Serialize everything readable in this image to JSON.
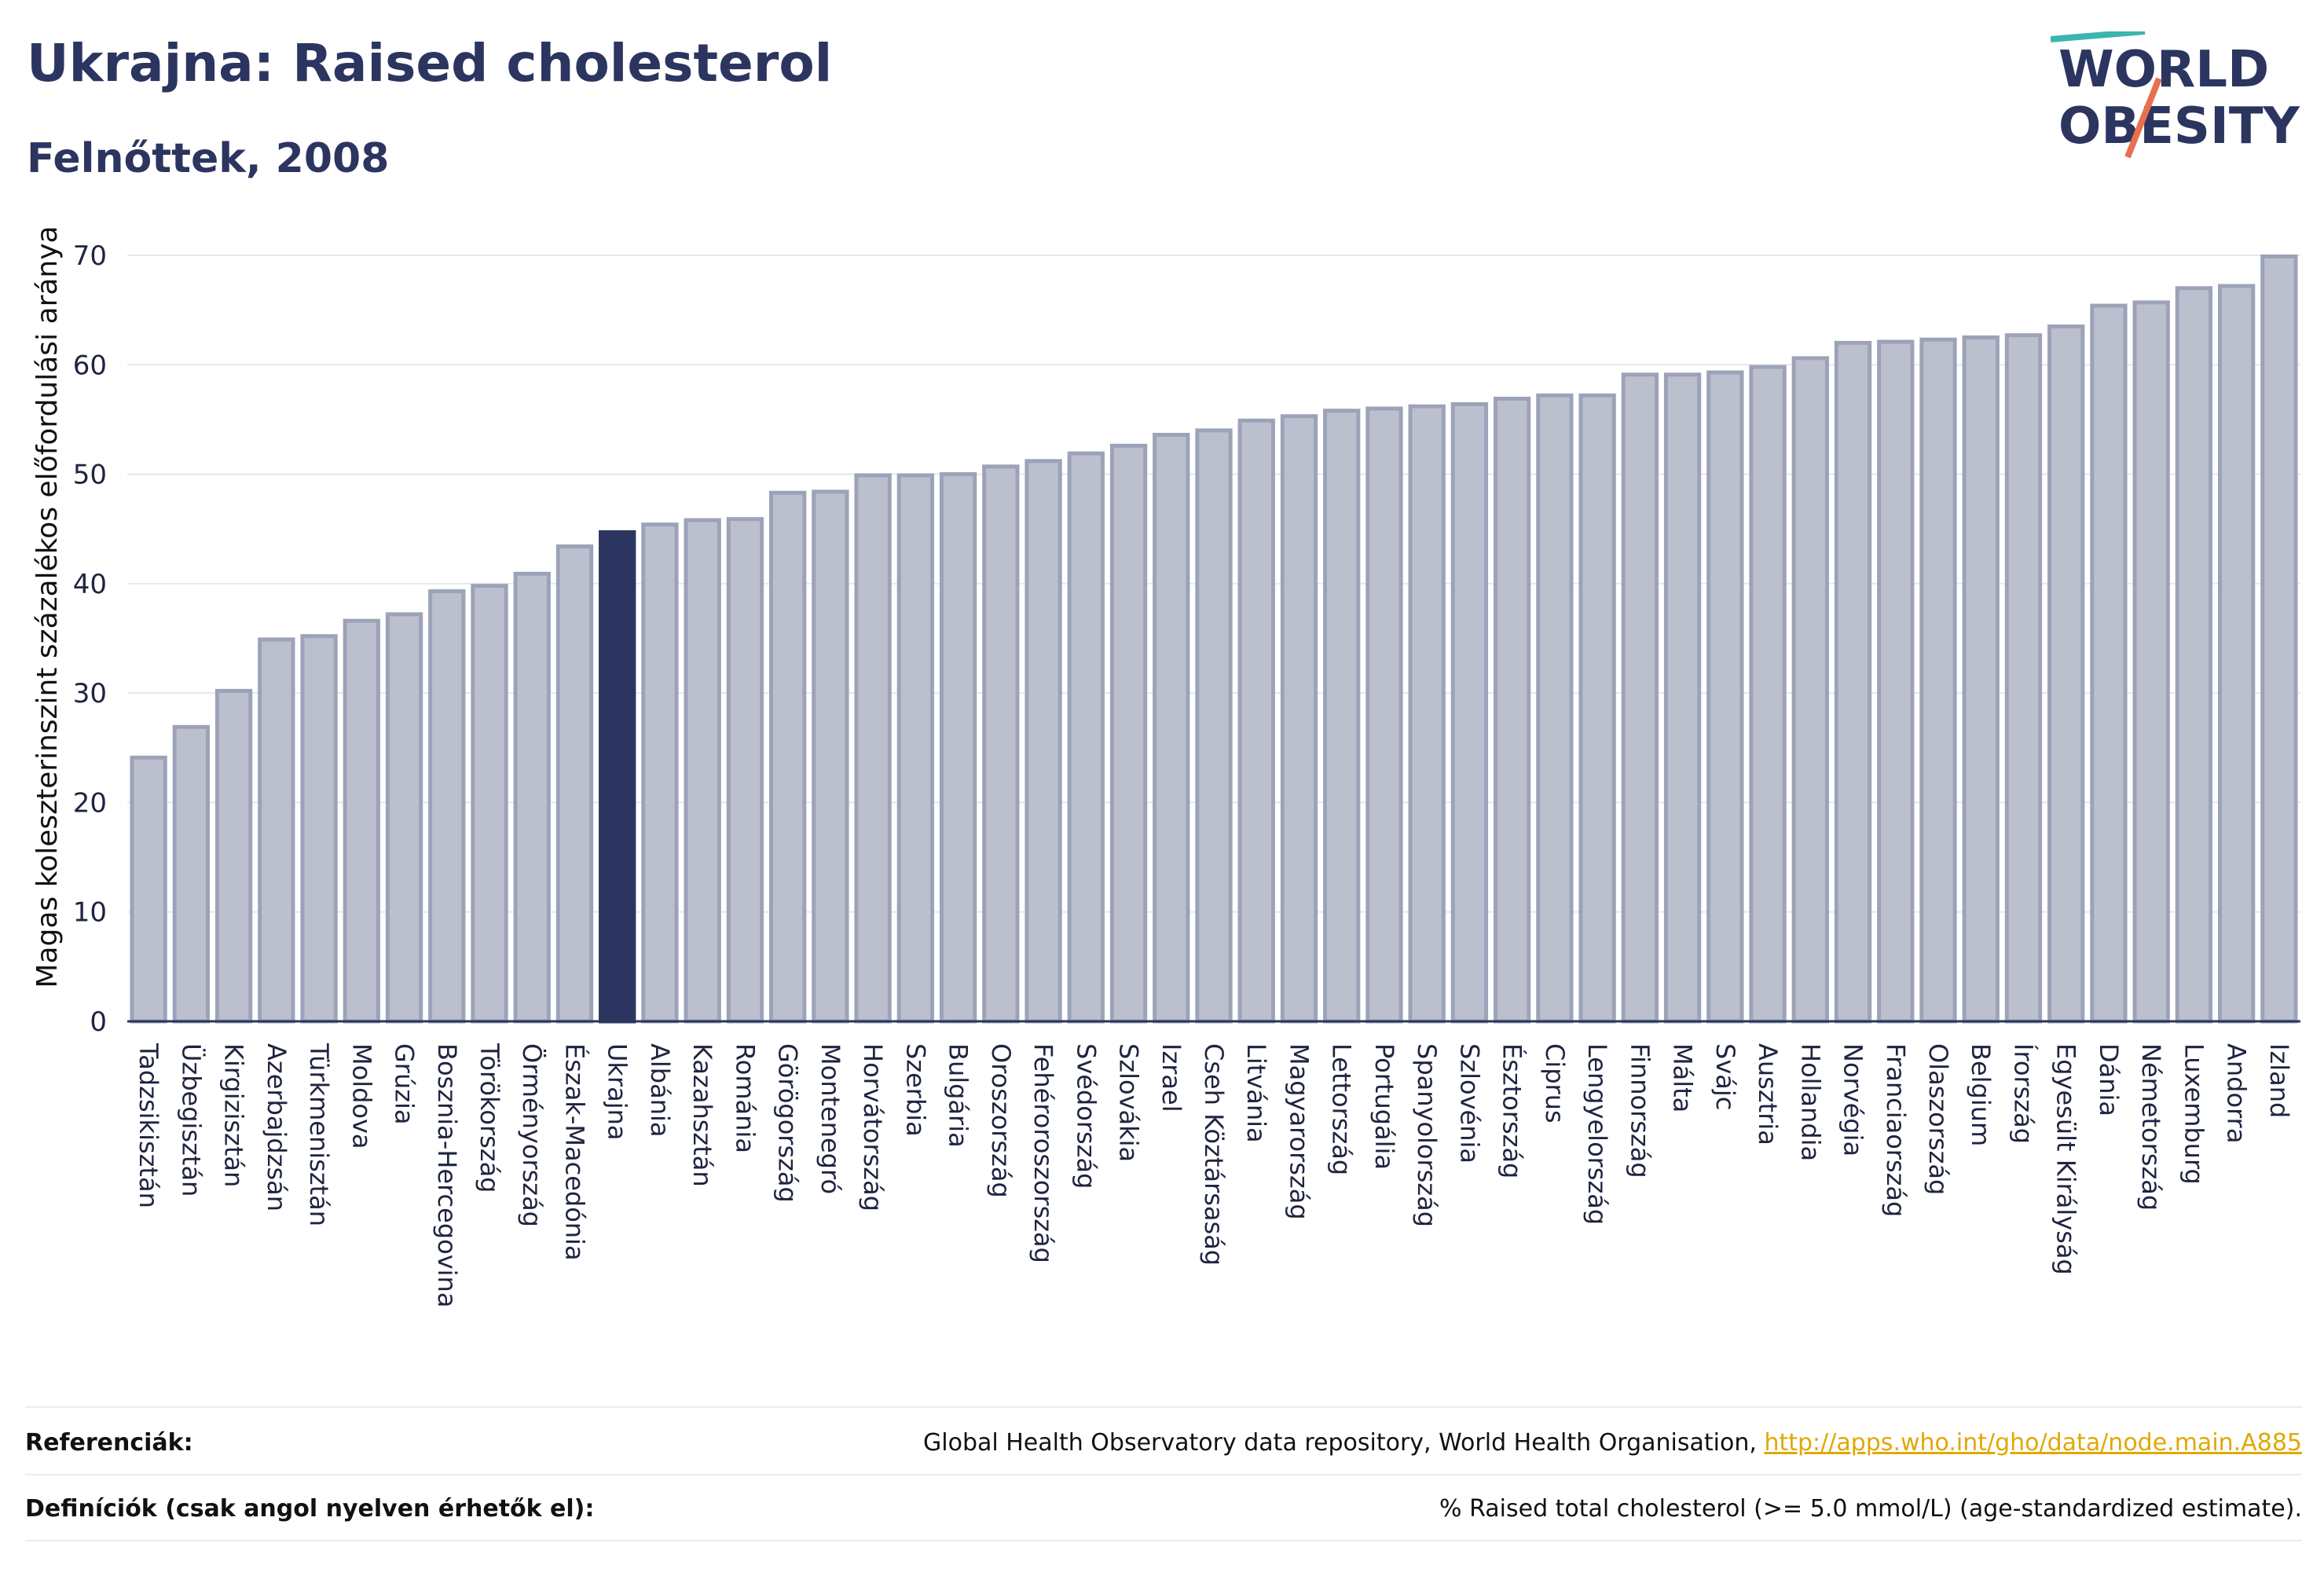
{
  "header": {
    "title": "Ukrajna: Raised cholesterol",
    "subtitle": "Felnőttek, 2008"
  },
  "logo": {
    "line1": "WORLD",
    "line2": "OBESITY"
  },
  "chart_data": {
    "type": "bar",
    "ylabel": "Magas koleszterinszint százalékos előfordulási aránya",
    "ylim": [
      0,
      70
    ],
    "yticks": [
      0,
      10,
      20,
      30,
      40,
      50,
      60,
      70
    ],
    "grid": true,
    "highlight": "Ukrajna",
    "colors": {
      "bar": "#bcc0ce",
      "bar_border": "#9ca3b8",
      "highlight": "#2b355f",
      "axis": "#2b355f",
      "grid": "#e6e8ee"
    },
    "categories": [
      "Tadzsikisztán",
      "Üzbegisztán",
      "Kirgizisztán",
      "Azerbajdzsán",
      "Türkmenisztán",
      "Moldova",
      "Grúzia",
      "Bosznia-Hercegovina",
      "Törökország",
      "Örményország",
      "Észak-Macedónia",
      "Ukrajna",
      "Albánia",
      "Kazahsztán",
      "Románia",
      "Görögország",
      "Montenegró",
      "Horvátország",
      "Szerbia",
      "Bulgária",
      "Oroszország",
      "Fehéroroszország",
      "Svédország",
      "Szlovákia",
      "Izrael",
      "Cseh Köztársaság",
      "Litvánia",
      "Magyarország",
      "Lettország",
      "Portugália",
      "Spanyolország",
      "Szlovénia",
      "Észtország",
      "Ciprus",
      "Lengyelország",
      "Finnország",
      "Málta",
      "Svájc",
      "Ausztria",
      "Hollandia",
      "Norvégia",
      "Franciaország",
      "Olaszország",
      "Belgium",
      "Írország",
      "Egyesült Királyság",
      "Dánia",
      "Németország",
      "Luxemburg",
      "Andorra",
      "Izland"
    ],
    "values": [
      24.1,
      26.9,
      30.2,
      34.9,
      35.2,
      36.6,
      37.2,
      39.3,
      39.8,
      40.9,
      43.4,
      44.7,
      45.4,
      45.8,
      45.9,
      48.3,
      48.4,
      49.9,
      49.9,
      50.0,
      50.7,
      51.2,
      51.9,
      52.6,
      53.6,
      54.0,
      54.9,
      55.3,
      55.8,
      56.0,
      56.2,
      56.4,
      56.9,
      57.2,
      57.2,
      59.1,
      59.1,
      59.3,
      59.8,
      60.6,
      62.0,
      62.1,
      62.3,
      62.5,
      62.7,
      63.5,
      65.4,
      65.7,
      67.0,
      67.2,
      69.9
    ]
  },
  "footer": {
    "references_label": "Referenciák:",
    "references_text": "Global Health Observatory data repository, World Health Organisation, ",
    "references_link": "http://apps.who.int/gho/data/node.main.A885",
    "definitions_label": "Definíciók (csak angol nyelven érhetők el):",
    "definitions_text": "% Raised total cholesterol (>= 5.0 mmol/L) (age-standardized estimate)."
  }
}
